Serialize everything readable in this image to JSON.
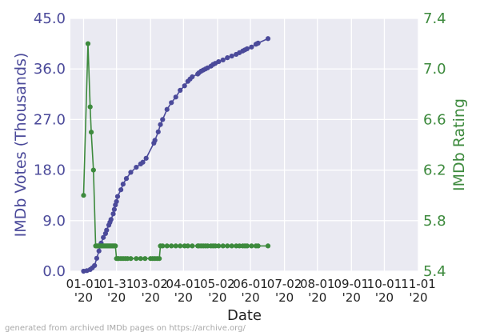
{
  "chart_data": {
    "type": "line",
    "xlabel": "Date",
    "ylabel_left": "IMDb Votes (Thousands)",
    "ylabel_right": "IMDb Rating",
    "ylim_left": [
      0.0,
      45.0
    ],
    "ylim_right": [
      5.4,
      7.4
    ],
    "yticks_left": [
      "0.0",
      "9.0",
      "18.0",
      "27.0",
      "36.0",
      "45.0"
    ],
    "yticks_right": [
      "5.4",
      "5.8",
      "6.2",
      "6.6",
      "7.0",
      "7.4"
    ],
    "xlim": [
      "2019-12-20",
      "2020-11-01"
    ],
    "xticks": [
      {
        "date": "2020-01-01",
        "line1": "01-01",
        "line2": "'20"
      },
      {
        "date": "2020-01-31",
        "line1": "01-31",
        "line2": "'20"
      },
      {
        "date": "2020-03-02",
        "line1": "03-02",
        "line2": "'20"
      },
      {
        "date": "2020-04-01",
        "line1": "04-01",
        "line2": "'20"
      },
      {
        "date": "2020-05-02",
        "line1": "05-02",
        "line2": "'20"
      },
      {
        "date": "2020-06-01",
        "line1": "06-01",
        "line2": "'20"
      },
      {
        "date": "2020-07-02",
        "line1": "07-02",
        "line2": "'20"
      },
      {
        "date": "2020-08-01",
        "line1": "08-01",
        "line2": "'20"
      },
      {
        "date": "2020-09-01",
        "line1": "09-01",
        "line2": "'20"
      },
      {
        "date": "2020-10-01",
        "line1": "10-01",
        "line2": "'20"
      },
      {
        "date": "2020-11-01",
        "line1": "11-01",
        "line2": "'20"
      }
    ],
    "grid": true,
    "series": [
      {
        "axis": "left",
        "color": "#4b4a9a",
        "points": [
          [
            "2020-01-01",
            0.0
          ],
          [
            "2020-01-04",
            0.1
          ],
          [
            "2020-01-07",
            0.3
          ],
          [
            "2020-01-09",
            0.6
          ],
          [
            "2020-01-11",
            1.0
          ],
          [
            "2020-01-13",
            2.3
          ],
          [
            "2020-01-15",
            3.6
          ],
          [
            "2020-01-17",
            5.0
          ],
          [
            "2020-01-19",
            6.0
          ],
          [
            "2020-01-21",
            6.7
          ],
          [
            "2020-01-22",
            7.3
          ],
          [
            "2020-01-24",
            8.2
          ],
          [
            "2020-01-25",
            8.7
          ],
          [
            "2020-01-26",
            9.2
          ],
          [
            "2020-01-28",
            10.2
          ],
          [
            "2020-01-29",
            11.0
          ],
          [
            "2020-01-30",
            11.8
          ],
          [
            "2020-01-31",
            12.4
          ],
          [
            "2020-02-01",
            13.3
          ],
          [
            "2020-02-04",
            14.5
          ],
          [
            "2020-02-06",
            15.5
          ],
          [
            "2020-02-09",
            16.5
          ],
          [
            "2020-02-13",
            17.6
          ],
          [
            "2020-02-18",
            18.5
          ],
          [
            "2020-02-22",
            19.1
          ],
          [
            "2020-02-24",
            19.4
          ],
          [
            "2020-02-27",
            20.1
          ],
          [
            "2020-03-05",
            22.8
          ],
          [
            "2020-03-06",
            23.3
          ],
          [
            "2020-03-09",
            24.8
          ],
          [
            "2020-03-11",
            26.1
          ],
          [
            "2020-03-13",
            27.0
          ],
          [
            "2020-03-17",
            28.8
          ],
          [
            "2020-03-21",
            30.0
          ],
          [
            "2020-03-25",
            31.0
          ],
          [
            "2020-03-29",
            32.2
          ],
          [
            "2020-04-02",
            33.0
          ],
          [
            "2020-04-05",
            33.8
          ],
          [
            "2020-04-07",
            34.2
          ],
          [
            "2020-04-09",
            34.6
          ],
          [
            "2020-04-14",
            35.1
          ],
          [
            "2020-04-15",
            35.3
          ],
          [
            "2020-04-17",
            35.6
          ],
          [
            "2020-04-19",
            35.8
          ],
          [
            "2020-04-21",
            36.0
          ],
          [
            "2020-04-23",
            36.2
          ],
          [
            "2020-04-26",
            36.5
          ],
          [
            "2020-04-28",
            36.8
          ],
          [
            "2020-04-30",
            37.0
          ],
          [
            "2020-05-03",
            37.3
          ],
          [
            "2020-05-07",
            37.6
          ],
          [
            "2020-05-11",
            38.0
          ],
          [
            "2020-05-15",
            38.3
          ],
          [
            "2020-05-19",
            38.6
          ],
          [
            "2020-05-22",
            38.9
          ],
          [
            "2020-05-25",
            39.2
          ],
          [
            "2020-05-27",
            39.4
          ],
          [
            "2020-05-29",
            39.6
          ],
          [
            "2020-06-02",
            39.9
          ],
          [
            "2020-06-06",
            40.4
          ],
          [
            "2020-06-07",
            40.5
          ],
          [
            "2020-06-08",
            40.6
          ],
          [
            "2020-06-17",
            41.4
          ]
        ]
      },
      {
        "axis": "right",
        "color": "#3d8a3d",
        "points": [
          [
            "2020-01-01",
            6.0
          ],
          [
            "2020-01-05",
            7.2
          ],
          [
            "2020-01-07",
            6.7
          ],
          [
            "2020-01-08",
            6.5
          ],
          [
            "2020-01-10",
            6.2
          ],
          [
            "2020-01-12",
            5.6
          ],
          [
            "2020-01-13",
            5.6
          ],
          [
            "2020-01-14",
            5.6
          ],
          [
            "2020-01-15",
            5.6
          ],
          [
            "2020-01-16",
            5.6
          ],
          [
            "2020-01-17",
            5.6
          ],
          [
            "2020-01-18",
            5.6
          ],
          [
            "2020-01-19",
            5.6
          ],
          [
            "2020-01-20",
            5.6
          ],
          [
            "2020-01-21",
            5.6
          ],
          [
            "2020-01-22",
            5.6
          ],
          [
            "2020-01-23",
            5.6
          ],
          [
            "2020-01-24",
            5.6
          ],
          [
            "2020-01-25",
            5.6
          ],
          [
            "2020-01-26",
            5.6
          ],
          [
            "2020-01-27",
            5.6
          ],
          [
            "2020-01-28",
            5.6
          ],
          [
            "2020-01-29",
            5.6
          ],
          [
            "2020-01-30",
            5.6
          ],
          [
            "2020-01-31",
            5.5
          ],
          [
            "2020-02-01",
            5.5
          ],
          [
            "2020-02-02",
            5.5
          ],
          [
            "2020-02-04",
            5.5
          ],
          [
            "2020-02-06",
            5.5
          ],
          [
            "2020-02-08",
            5.5
          ],
          [
            "2020-02-10",
            5.5
          ],
          [
            "2020-02-13",
            5.5
          ],
          [
            "2020-02-18",
            5.5
          ],
          [
            "2020-02-22",
            5.5
          ],
          [
            "2020-02-26",
            5.5
          ],
          [
            "2020-03-02",
            5.5
          ],
          [
            "2020-03-04",
            5.5
          ],
          [
            "2020-03-06",
            5.5
          ],
          [
            "2020-03-08",
            5.5
          ],
          [
            "2020-03-10",
            5.5
          ],
          [
            "2020-03-11",
            5.6
          ],
          [
            "2020-03-13",
            5.6
          ],
          [
            "2020-03-17",
            5.6
          ],
          [
            "2020-03-21",
            5.6
          ],
          [
            "2020-03-25",
            5.6
          ],
          [
            "2020-03-29",
            5.6
          ],
          [
            "2020-04-02",
            5.6
          ],
          [
            "2020-04-05",
            5.6
          ],
          [
            "2020-04-09",
            5.6
          ],
          [
            "2020-04-14",
            5.6
          ],
          [
            "2020-04-15",
            5.6
          ],
          [
            "2020-04-17",
            5.6
          ],
          [
            "2020-04-19",
            5.6
          ],
          [
            "2020-04-21",
            5.6
          ],
          [
            "2020-04-23",
            5.6
          ],
          [
            "2020-04-26",
            5.6
          ],
          [
            "2020-04-28",
            5.6
          ],
          [
            "2020-04-30",
            5.6
          ],
          [
            "2020-05-03",
            5.6
          ],
          [
            "2020-05-07",
            5.6
          ],
          [
            "2020-05-11",
            5.6
          ],
          [
            "2020-05-15",
            5.6
          ],
          [
            "2020-05-19",
            5.6
          ],
          [
            "2020-05-22",
            5.6
          ],
          [
            "2020-05-25",
            5.6
          ],
          [
            "2020-05-27",
            5.6
          ],
          [
            "2020-05-29",
            5.6
          ],
          [
            "2020-06-02",
            5.6
          ],
          [
            "2020-06-06",
            5.6
          ],
          [
            "2020-06-08",
            5.6
          ],
          [
            "2020-06-17",
            5.6
          ]
        ]
      }
    ]
  },
  "footer": "generated from archived IMDb pages on https://archive.org/"
}
